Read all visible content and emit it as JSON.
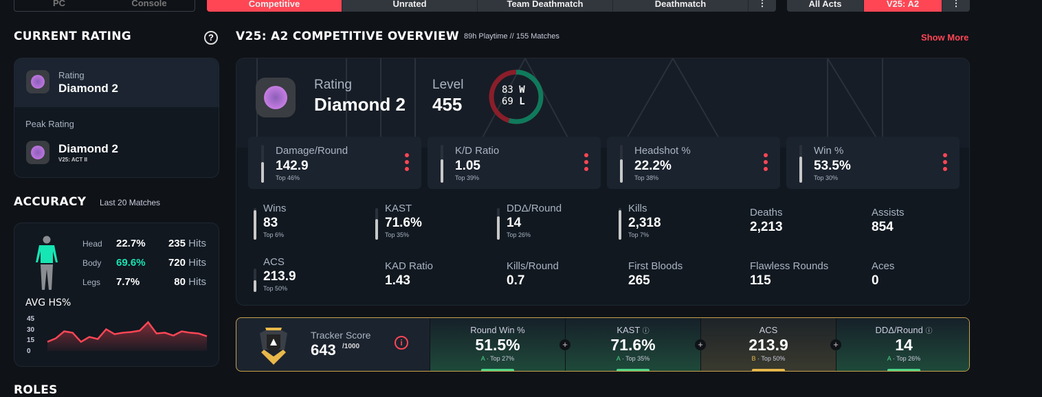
{
  "top_tabs": {
    "platform": [
      "PC",
      "Console"
    ],
    "modes": [
      "Competitive",
      "Unrated",
      "Team Deathmatch",
      "Deathmatch"
    ],
    "acts": [
      "All Acts",
      "V25: A2"
    ]
  },
  "current_rating": {
    "title": "CURRENT RATING",
    "rating_label": "Rating",
    "rating": "Diamond 2",
    "peak_label": "Peak Rating",
    "peak": "Diamond 2",
    "peak_act": "V25: ACT II"
  },
  "accuracy": {
    "title": "ACCURACY",
    "subtitle": "Last 20 Matches",
    "rows": [
      {
        "part": "Head",
        "pct": "22.7%",
        "hits": "235",
        "unit": "Hits"
      },
      {
        "part": "Body",
        "pct": "69.6%",
        "hits": "720",
        "unit": "Hits"
      },
      {
        "part": "Legs",
        "pct": "7.7%",
        "hits": "80",
        "unit": "Hits"
      }
    ],
    "avg_label": "AVG HS%"
  },
  "chart_data": {
    "type": "area",
    "title": "AVG HS%",
    "yticks": [
      "45",
      "30",
      "15",
      "0"
    ],
    "ylim": [
      0,
      45
    ],
    "values": [
      13,
      18,
      28,
      26,
      13,
      20,
      17,
      31,
      24,
      26,
      27,
      29,
      41,
      25,
      26,
      22,
      28,
      26,
      25,
      21
    ],
    "color": "#ff4655"
  },
  "overview": {
    "title": "V25: A2 COMPETITIVE OVERVIEW",
    "playtime": "89h Playtime",
    "sep": "//",
    "matches": "155 Matches",
    "show_more": "Show More",
    "rating_label": "Rating",
    "rating": "Diamond 2",
    "level_label": "Level",
    "level": "455",
    "wins": "83",
    "w": "W",
    "losses": "69",
    "l": "L",
    "main_stats": [
      {
        "label": "Damage/Round",
        "value": "142.9",
        "top": "Top 46%",
        "pct": 54
      },
      {
        "label": "K/D Ratio",
        "value": "1.05",
        "top": "Top 39%",
        "pct": 61
      },
      {
        "label": "Headshot %",
        "value": "22.2%",
        "top": "Top 38%",
        "pct": 62
      },
      {
        "label": "Win %",
        "value": "53.5%",
        "top": "Top 30%",
        "pct": 70
      }
    ],
    "stats": [
      {
        "label": "Wins",
        "value": "83",
        "top": "Top 6%",
        "pct": 94
      },
      {
        "label": "KAST",
        "value": "71.6%",
        "top": "Top 35%",
        "pct": 65
      },
      {
        "label": "DDΔ/Round",
        "value": "14",
        "top": "Top 26%",
        "pct": 74
      },
      {
        "label": "Kills",
        "value": "2,318",
        "top": "Top 7%",
        "pct": 93
      },
      {
        "label": "Deaths",
        "value": "2,213"
      },
      {
        "label": "Assists",
        "value": "854"
      },
      {
        "label": "ACS",
        "value": "213.9",
        "top": "Top 50%",
        "pct": 50
      },
      {
        "label": "KAD Ratio",
        "value": "1.43"
      },
      {
        "label": "Kills/Round",
        "value": "0.7"
      },
      {
        "label": "First Bloods",
        "value": "265"
      },
      {
        "label": "Flawless Rounds",
        "value": "115"
      },
      {
        "label": "Aces",
        "value": "0"
      }
    ]
  },
  "tracker": {
    "label": "Tracker Score",
    "score": "643",
    "max": "/1000",
    "cols": [
      {
        "label": "Round Win %",
        "value": "51.5%",
        "grade": "A",
        "top": "· Top 27%"
      },
      {
        "label": "KAST",
        "value": "71.6%",
        "grade": "A",
        "top": "· Top 35%"
      },
      {
        "label": "ACS",
        "value": "213.9",
        "grade": "B",
        "top": "· Top 50%"
      },
      {
        "label": "DDΔ/Round",
        "value": "14",
        "grade": "A",
        "top": "· Top 26%"
      }
    ]
  },
  "roles": {
    "title": "ROLES"
  }
}
